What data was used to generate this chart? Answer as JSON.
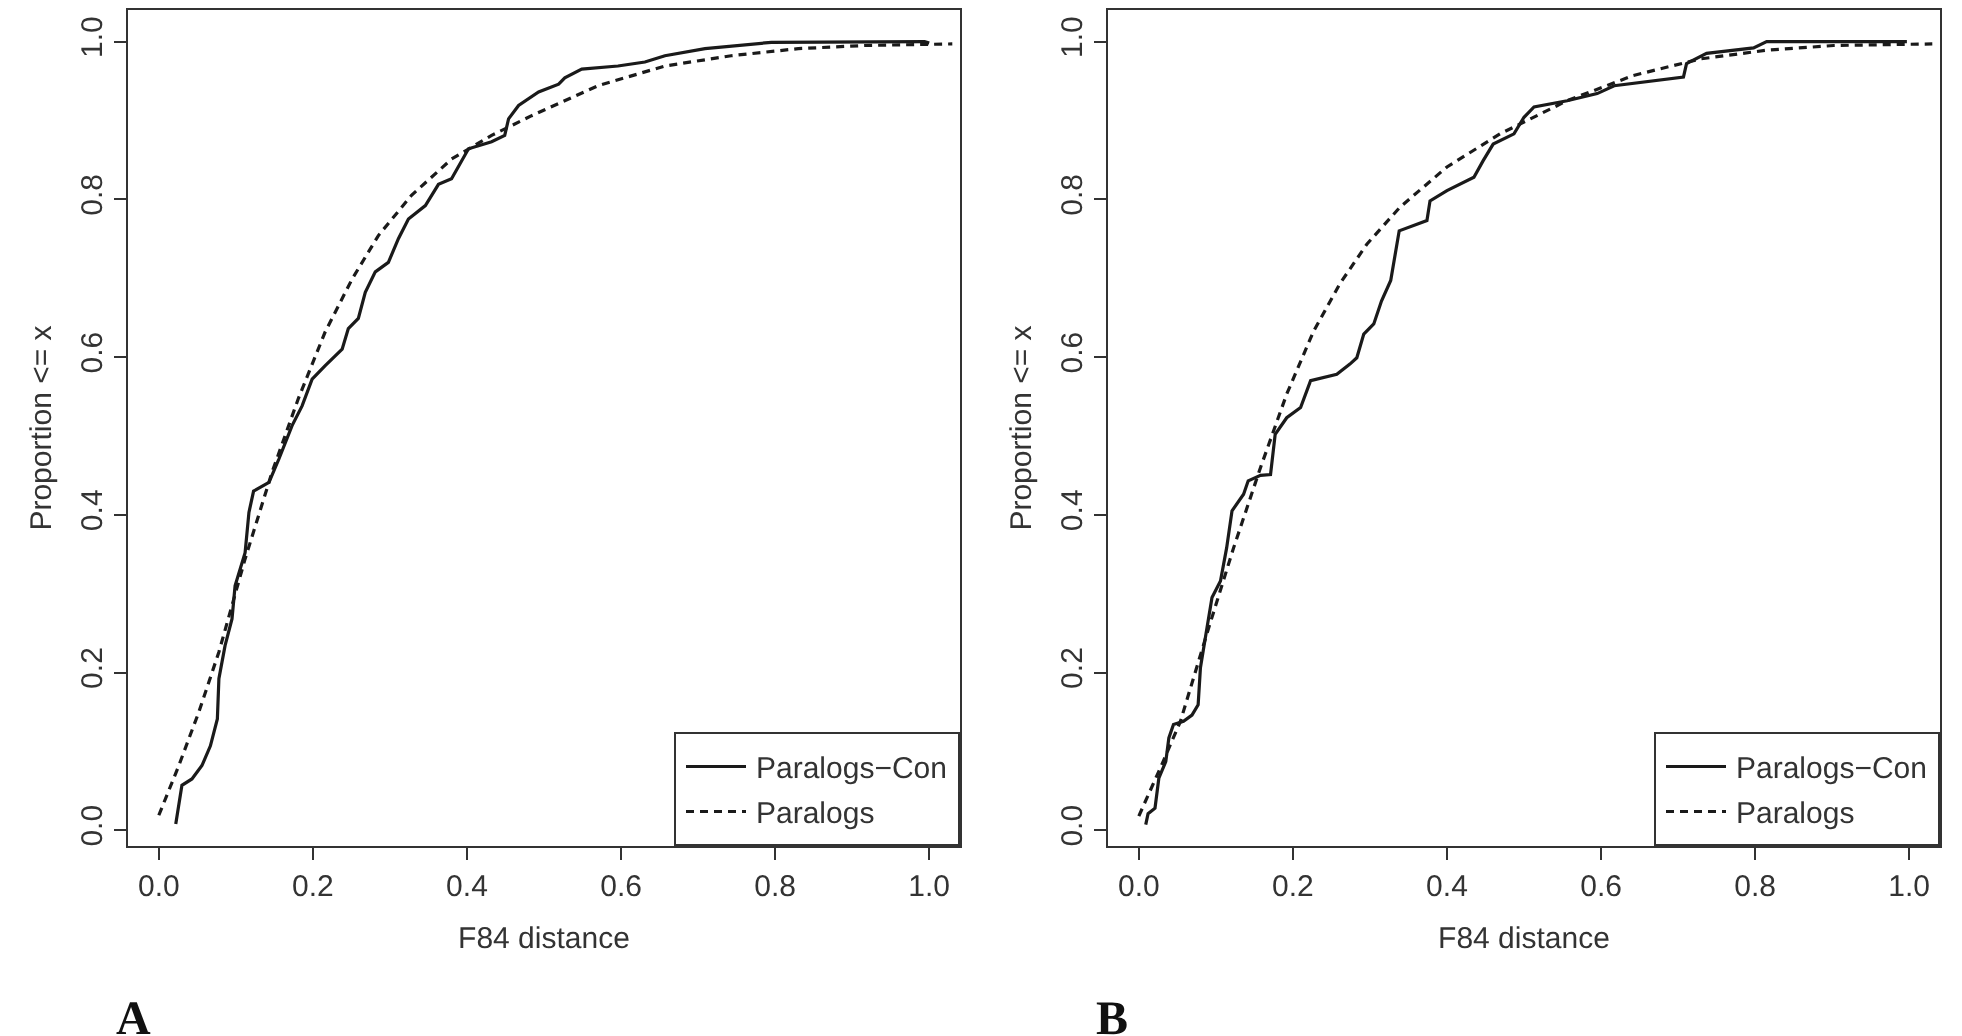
{
  "chart_data": [
    {
      "type": "line",
      "xlabel": "F84 distance",
      "ylabel": "Proportion <= x",
      "annotations": [
        "A"
      ],
      "legend": "bottom right",
      "grid": false,
      "xlim": [
        -0.04,
        1.04
      ],
      "ylim": [
        -0.02,
        1.04
      ],
      "xticks": [
        {
          "value": 0,
          "label": "0.0"
        },
        {
          "value": 0.2,
          "label": "0.2"
        },
        {
          "value": 0.4,
          "label": "0.4"
        },
        {
          "value": 0.6,
          "label": "0.6"
        },
        {
          "value": 0.8,
          "label": "0.8"
        },
        {
          "value": 1,
          "label": "1.0"
        }
      ],
      "yticks": [
        {
          "value": 0,
          "label": "0.0"
        },
        {
          "value": 0.2,
          "label": "0.2"
        },
        {
          "value": 0.4,
          "label": "0.4"
        },
        {
          "value": 0.6,
          "label": "0.6"
        },
        {
          "value": 0.8,
          "label": "0.8"
        },
        {
          "value": 1,
          "label": "1.0"
        }
      ],
      "series": [
        {
          "name": "Paralogs−Con",
          "color": "#1a1a1a",
          "line_style": "solid",
          "x": [
            0.022,
            0.03,
            0.043,
            0.056,
            0.067,
            0.076,
            0.078,
            0.086,
            0.095,
            0.099,
            0.112,
            0.117,
            0.123,
            0.143,
            0.156,
            0.173,
            0.186,
            0.199,
            0.216,
            0.238,
            0.246,
            0.259,
            0.268,
            0.281,
            0.298,
            0.311,
            0.324,
            0.346,
            0.363,
            0.38,
            0.402,
            0.432,
            0.449,
            0.454,
            0.467,
            0.493,
            0.519,
            0.527,
            0.549,
            0.596,
            0.631,
            0.657,
            0.709,
            0.795,
            0.994,
            1.0
          ],
          "values": [
            0.008,
            0.057,
            0.065,
            0.082,
            0.107,
            0.141,
            0.192,
            0.234,
            0.268,
            0.31,
            0.352,
            0.403,
            0.43,
            0.441,
            0.471,
            0.513,
            0.538,
            0.572,
            0.589,
            0.61,
            0.636,
            0.649,
            0.682,
            0.708,
            0.72,
            0.75,
            0.775,
            0.792,
            0.819,
            0.826,
            0.864,
            0.873,
            0.881,
            0.902,
            0.919,
            0.936,
            0.946,
            0.954,
            0.965,
            0.969,
            0.974,
            0.982,
            0.991,
            0.999,
            1.0,
            0.998
          ]
        },
        {
          "name": "Paralogs",
          "color": "#1a1a1a",
          "line_style": "dashed",
          "x": [
            0,
            0.026,
            0.052,
            0.078,
            0.112,
            0.147,
            0.181,
            0.216,
            0.251,
            0.285,
            0.328,
            0.38,
            0.432,
            0.484,
            0.57,
            0.657,
            0.743,
            0.83,
            0.916,
            1.03
          ],
          "values": [
            0.019,
            0.082,
            0.15,
            0.226,
            0.344,
            0.454,
            0.547,
            0.632,
            0.699,
            0.754,
            0.805,
            0.851,
            0.881,
            0.906,
            0.944,
            0.969,
            0.982,
            0.991,
            0.995,
            0.997
          ]
        }
      ]
    },
    {
      "type": "line",
      "xlabel": "F84 distance",
      "ylabel": "Proportion <= x",
      "annotations": [
        "B"
      ],
      "legend": "bottom right",
      "grid": false,
      "xlim": [
        -0.04,
        1.04
      ],
      "ylim": [
        -0.02,
        1.04
      ],
      "xticks": [
        {
          "value": 0,
          "label": "0.0"
        },
        {
          "value": 0.2,
          "label": "0.2"
        },
        {
          "value": 0.4,
          "label": "0.4"
        },
        {
          "value": 0.6,
          "label": "0.6"
        },
        {
          "value": 0.8,
          "label": "0.8"
        },
        {
          "value": 1,
          "label": "1.0"
        }
      ],
      "yticks": [
        {
          "value": 0,
          "label": "0.0"
        },
        {
          "value": 0.2,
          "label": "0.2"
        },
        {
          "value": 0.4,
          "label": "0.4"
        },
        {
          "value": 0.6,
          "label": "0.6"
        },
        {
          "value": 0.8,
          "label": "0.8"
        },
        {
          "value": 1,
          "label": "1.0"
        }
      ],
      "series": [
        {
          "name": "Paralogs−Con",
          "color": "#1a1a1a",
          "line_style": "solid",
          "x": [
            0.009,
            0.012,
            0.021,
            0.026,
            0.035,
            0.039,
            0.045,
            0.058,
            0.069,
            0.077,
            0.08,
            0.087,
            0.095,
            0.106,
            0.114,
            0.121,
            0.136,
            0.142,
            0.158,
            0.171,
            0.177,
            0.192,
            0.21,
            0.223,
            0.257,
            0.274,
            0.283,
            0.292,
            0.305,
            0.315,
            0.327,
            0.338,
            0.374,
            0.378,
            0.4,
            0.435,
            0.447,
            0.46,
            0.487,
            0.5,
            0.513,
            0.556,
            0.595,
            0.617,
            0.707,
            0.711,
            0.737,
            0.798,
            0.815,
            0.997
          ],
          "values": [
            0.007,
            0.021,
            0.028,
            0.066,
            0.087,
            0.117,
            0.134,
            0.138,
            0.146,
            0.159,
            0.206,
            0.248,
            0.295,
            0.316,
            0.358,
            0.405,
            0.426,
            0.443,
            0.45,
            0.451,
            0.502,
            0.523,
            0.536,
            0.57,
            0.578,
            0.591,
            0.599,
            0.629,
            0.642,
            0.671,
            0.697,
            0.76,
            0.773,
            0.798,
            0.811,
            0.828,
            0.849,
            0.87,
            0.883,
            0.904,
            0.917,
            0.925,
            0.934,
            0.944,
            0.955,
            0.972,
            0.985,
            0.992,
            1.0,
            1.0
          ]
        },
        {
          "name": "Paralogs",
          "color": "#1a1a1a",
          "line_style": "dashed",
          "x": [
            0,
            0.028,
            0.054,
            0.088,
            0.123,
            0.158,
            0.192,
            0.227,
            0.261,
            0.296,
            0.339,
            0.4,
            0.469,
            0.556,
            0.642,
            0.729,
            0.815,
            0.902,
            1.03
          ],
          "values": [
            0.018,
            0.079,
            0.138,
            0.248,
            0.358,
            0.46,
            0.553,
            0.633,
            0.693,
            0.743,
            0.79,
            0.841,
            0.883,
            0.925,
            0.957,
            0.978,
            0.989,
            0.995,
            0.997
          ]
        }
      ]
    }
  ]
}
